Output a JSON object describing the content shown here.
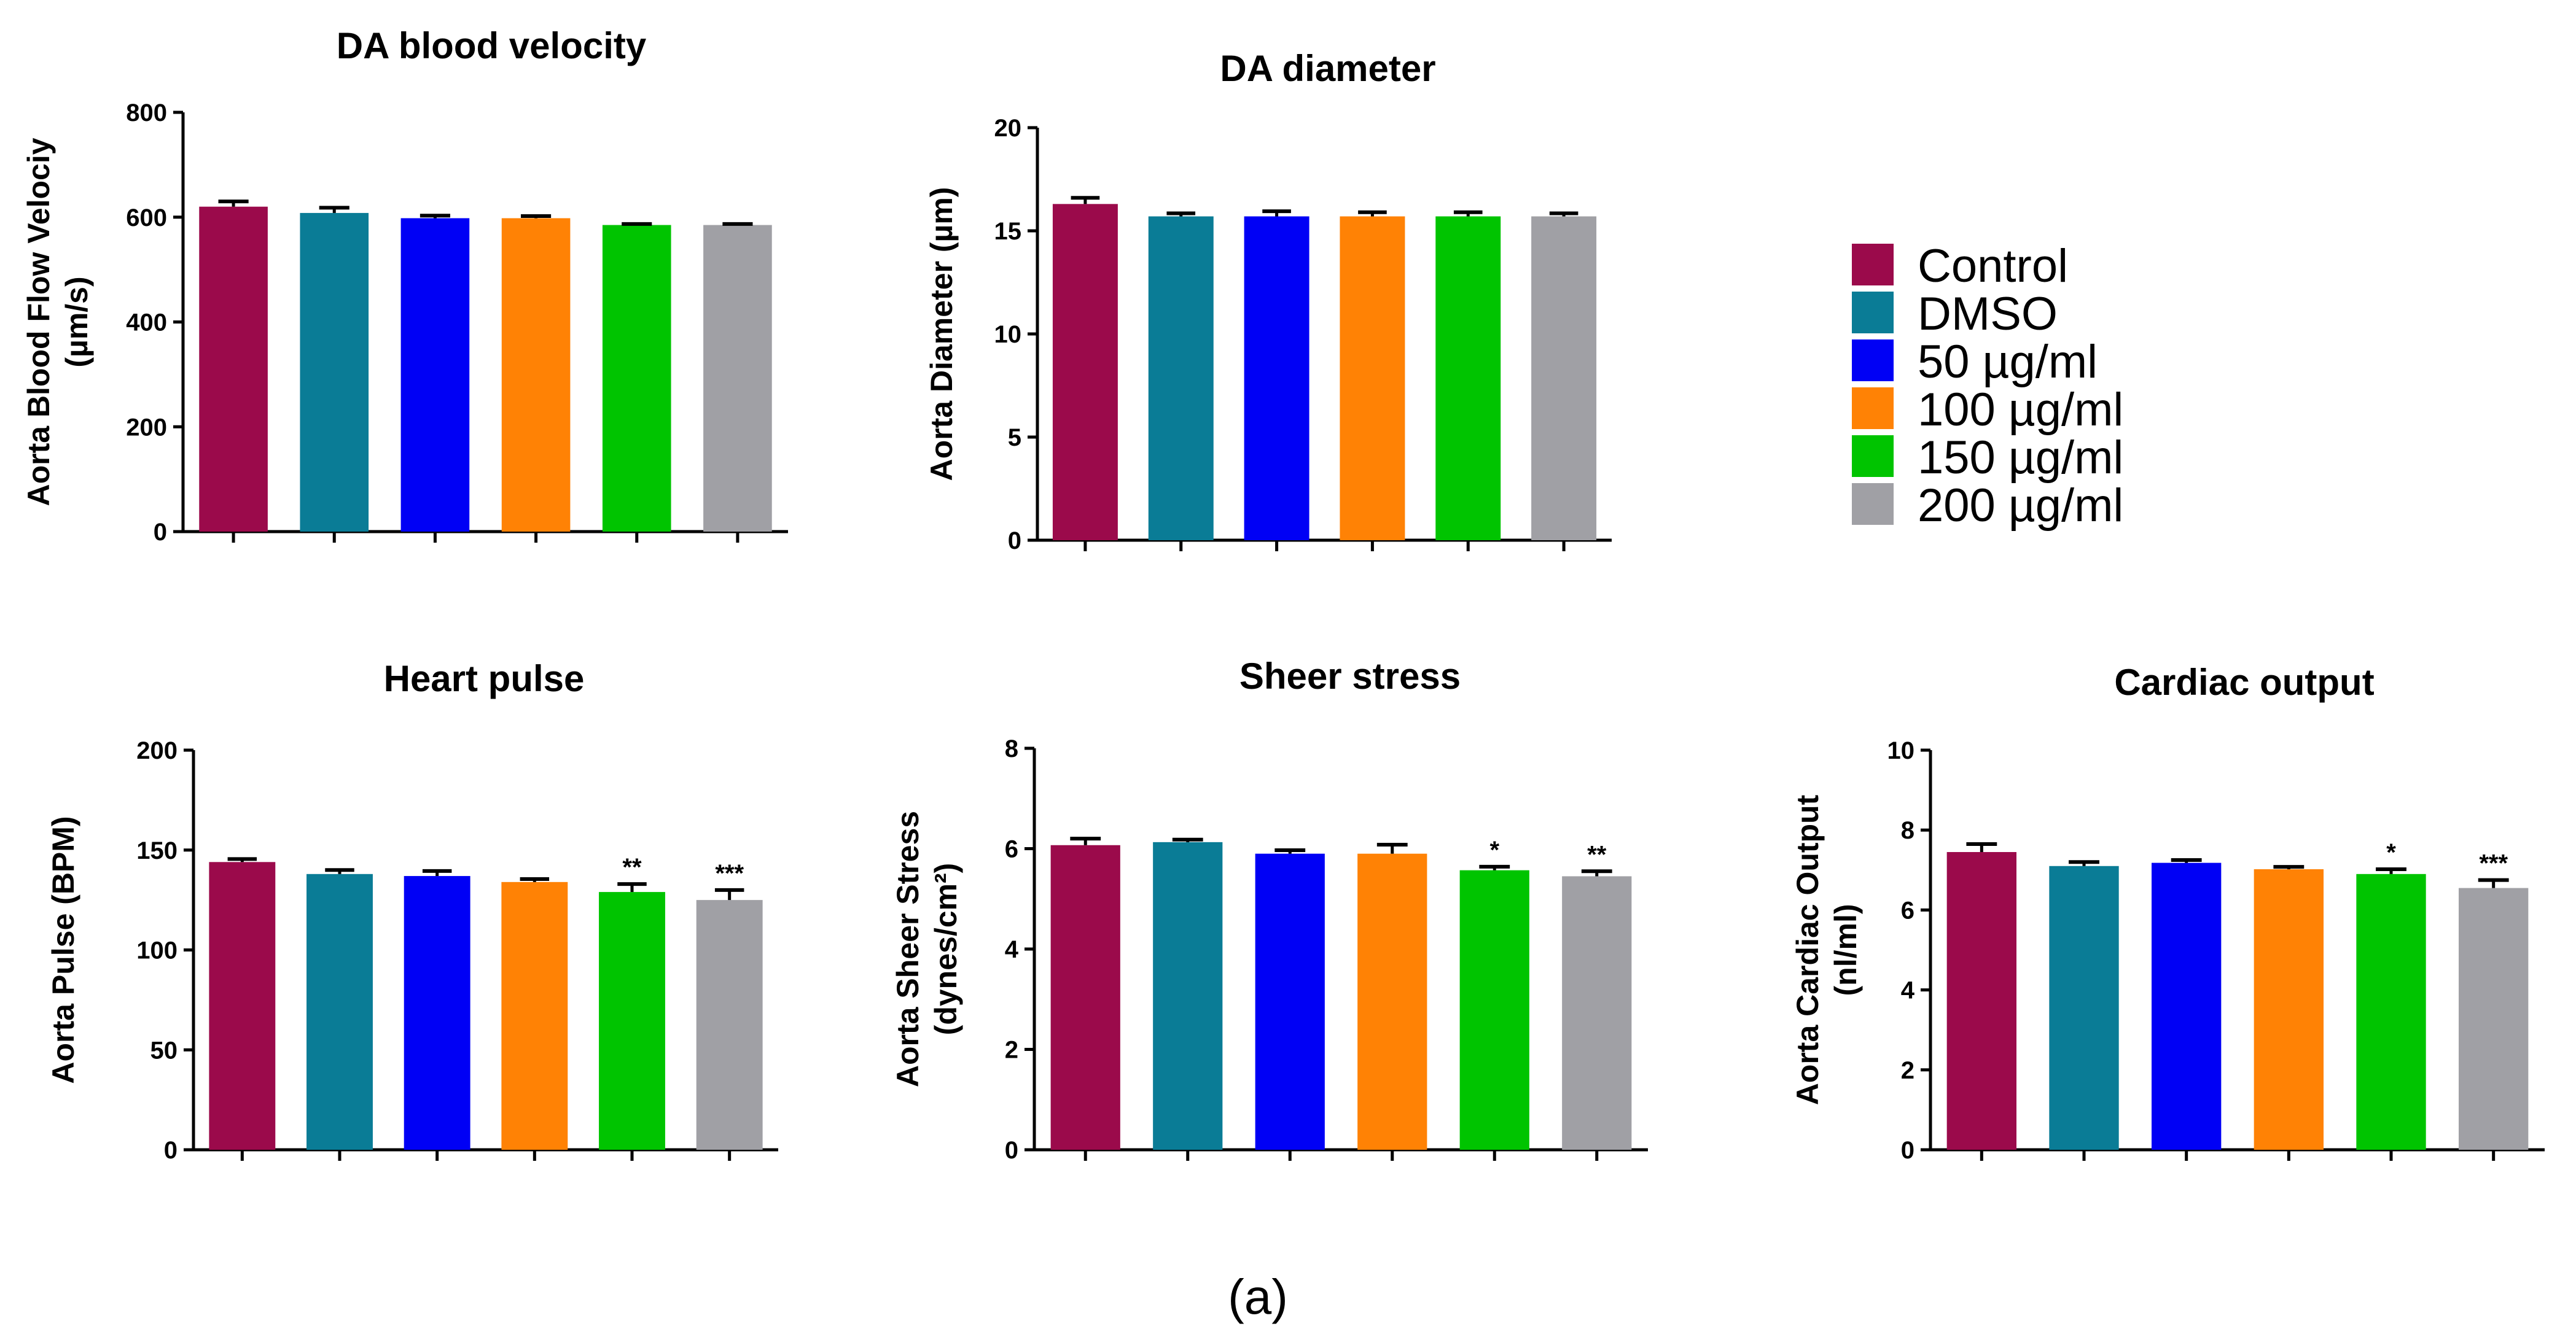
{
  "legend": {
    "items": [
      {
        "label": "Control",
        "color": "#9B0A4B"
      },
      {
        "label": "DMSO",
        "color": "#0A7C96"
      },
      {
        "label": "50 µg/ml",
        "color": "#0000F5"
      },
      {
        "label": "100 µg/ml",
        "color": "#FF8205"
      },
      {
        "label": "150 µg/ml",
        "color": "#00C400"
      },
      {
        "label": "200 µg/ml",
        "color": "#A0A0A5"
      }
    ]
  },
  "caption": "(a)",
  "chart_data": [
    {
      "type": "bar",
      "title": "DA blood velocity",
      "ylabel_lines": [
        "Aorta Blood Flow Velociy",
        "(µm/s)"
      ],
      "ylim": [
        0,
        800
      ],
      "yticks": [
        "0",
        "200",
        "400",
        "600",
        "800"
      ],
      "categories": [
        "Control",
        "DMSO",
        "50 µg/ml",
        "100 µg/ml",
        "150 µg/ml",
        "200 µg/ml"
      ],
      "values": [
        620,
        608,
        598,
        598,
        585,
        585
      ],
      "errors": [
        10,
        10,
        5,
        4,
        2,
        2
      ],
      "significance": [
        "",
        "",
        "",
        "",
        "",
        ""
      ]
    },
    {
      "type": "bar",
      "title": "DA diameter",
      "ylabel_lines": [
        "Aorta Diameter (µm)"
      ],
      "ylim": [
        0,
        20
      ],
      "yticks": [
        "0",
        "5",
        "10",
        "15",
        "20"
      ],
      "categories": [
        "Control",
        "DMSO",
        "50 µg/ml",
        "100 µg/ml",
        "150 µg/ml",
        "200 µg/ml"
      ],
      "values": [
        16.3,
        15.7,
        15.7,
        15.7,
        15.7,
        15.7
      ],
      "errors": [
        0.3,
        0.15,
        0.25,
        0.2,
        0.2,
        0.15
      ],
      "significance": [
        "",
        "",
        "",
        "",
        "",
        ""
      ]
    },
    {
      "type": "bar",
      "title": "Heart pulse",
      "ylabel_lines": [
        "Aorta Pulse (BPM)"
      ],
      "ylim": [
        0,
        200
      ],
      "yticks": [
        "0",
        "50",
        "100",
        "150",
        "200"
      ],
      "categories": [
        "Control",
        "DMSO",
        "50 µg/ml",
        "100 µg/ml",
        "150 µg/ml",
        "200 µg/ml"
      ],
      "values": [
        144,
        138,
        137,
        134,
        129,
        125
      ],
      "errors": [
        1.5,
        2,
        2.5,
        1.5,
        4,
        5
      ],
      "significance": [
        "",
        "",
        "",
        "",
        "**",
        "***"
      ]
    },
    {
      "type": "bar",
      "title": "Sheer stress",
      "ylabel_lines": [
        "Aorta Sheer Stress",
        "(dynes/cm²)"
      ],
      "ylim": [
        0,
        8
      ],
      "yticks": [
        "0",
        "2",
        "4",
        "6",
        "8"
      ],
      "categories": [
        "Control",
        "DMSO",
        "50 µg/ml",
        "100 µg/ml",
        "150 µg/ml",
        "200 µg/ml"
      ],
      "values": [
        6.07,
        6.13,
        5.9,
        5.9,
        5.57,
        5.45
      ],
      "errors": [
        0.13,
        0.05,
        0.07,
        0.18,
        0.07,
        0.1
      ],
      "significance": [
        "",
        "",
        "",
        "",
        "*",
        "**"
      ]
    },
    {
      "type": "bar",
      "title": "Cardiac output",
      "ylabel_lines": [
        "Aorta Cardiac Output",
        "(nl/ml)"
      ],
      "ylim": [
        0,
        10
      ],
      "yticks": [
        "0",
        "2",
        "4",
        "6",
        "8",
        "10"
      ],
      "categories": [
        "Control",
        "DMSO",
        "50 µg/ml",
        "100 µg/ml",
        "150 µg/ml",
        "200 µg/ml"
      ],
      "values": [
        7.45,
        7.1,
        7.18,
        7.02,
        6.9,
        6.55
      ],
      "errors": [
        0.2,
        0.1,
        0.07,
        0.06,
        0.12,
        0.2
      ],
      "significance": [
        "",
        "",
        "",
        "",
        "*",
        "***"
      ]
    }
  ]
}
